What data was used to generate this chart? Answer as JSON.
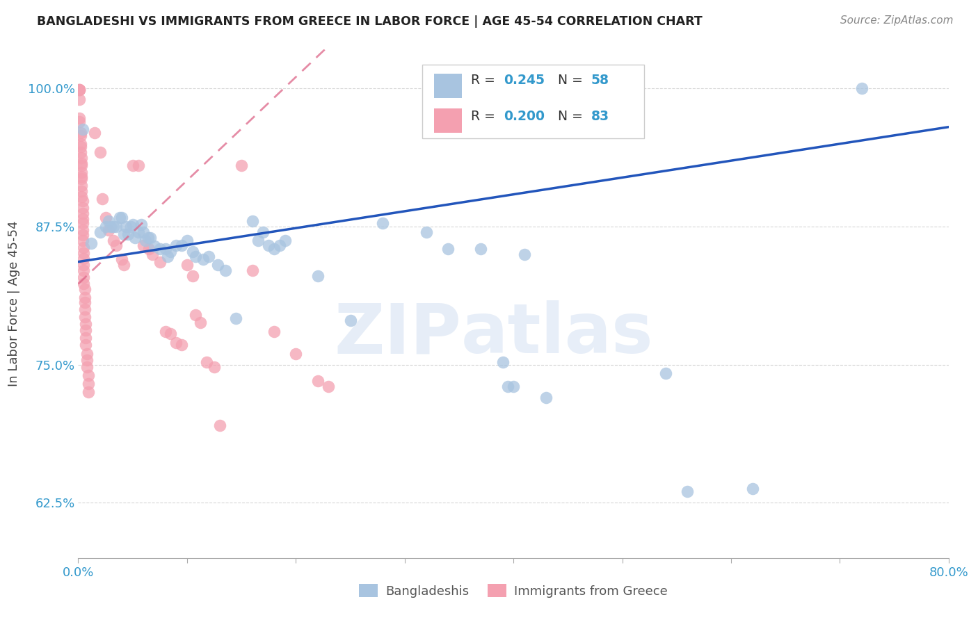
{
  "title": "BANGLADESHI VS IMMIGRANTS FROM GREECE IN LABOR FORCE | AGE 45-54 CORRELATION CHART",
  "source": "Source: ZipAtlas.com",
  "ylabel": "In Labor Force | Age 45-54",
  "watermark_zip": "ZIP",
  "watermark_atlas": "atlas",
  "xlim": [
    0.0,
    0.8
  ],
  "ylim": [
    0.575,
    1.035
  ],
  "yticks": [
    0.625,
    0.75,
    0.875,
    1.0
  ],
  "ytick_labels": [
    "62.5%",
    "75.0%",
    "87.5%",
    "100.0%"
  ],
  "xticks": [
    0.0,
    0.1,
    0.2,
    0.3,
    0.4,
    0.5,
    0.6,
    0.7,
    0.8
  ],
  "xtick_labels": [
    "0.0%",
    "",
    "",
    "",
    "",
    "",
    "",
    "",
    "80.0%"
  ],
  "blue_R": 0.245,
  "blue_N": 58,
  "pink_R": 0.2,
  "pink_N": 83,
  "blue_color": "#a8c4e0",
  "pink_color": "#f4a0b0",
  "blue_line_color": "#2255bb",
  "pink_line_color": "#dd6688",
  "blue_line_x": [
    0.0,
    0.8
  ],
  "blue_line_y": [
    0.843,
    0.965
  ],
  "pink_line_x": [
    0.0,
    0.125
  ],
  "pink_line_y": [
    0.823,
    0.94
  ],
  "blue_scatter": [
    [
      0.004,
      0.963
    ],
    [
      0.012,
      0.86
    ],
    [
      0.02,
      0.87
    ],
    [
      0.025,
      0.875
    ],
    [
      0.028,
      0.88
    ],
    [
      0.03,
      0.875
    ],
    [
      0.032,
      0.875
    ],
    [
      0.035,
      0.875
    ],
    [
      0.038,
      0.883
    ],
    [
      0.04,
      0.883
    ],
    [
      0.042,
      0.868
    ],
    [
      0.044,
      0.875
    ],
    [
      0.046,
      0.868
    ],
    [
      0.048,
      0.875
    ],
    [
      0.05,
      0.877
    ],
    [
      0.052,
      0.865
    ],
    [
      0.055,
      0.87
    ],
    [
      0.058,
      0.877
    ],
    [
      0.06,
      0.87
    ],
    [
      0.062,
      0.862
    ],
    [
      0.064,
      0.865
    ],
    [
      0.066,
      0.865
    ],
    [
      0.07,
      0.857
    ],
    [
      0.075,
      0.855
    ],
    [
      0.08,
      0.855
    ],
    [
      0.082,
      0.848
    ],
    [
      0.085,
      0.852
    ],
    [
      0.09,
      0.858
    ],
    [
      0.095,
      0.858
    ],
    [
      0.1,
      0.862
    ],
    [
      0.105,
      0.852
    ],
    [
      0.108,
      0.848
    ],
    [
      0.115,
      0.845
    ],
    [
      0.12,
      0.848
    ],
    [
      0.128,
      0.84
    ],
    [
      0.135,
      0.835
    ],
    [
      0.145,
      0.792
    ],
    [
      0.16,
      0.88
    ],
    [
      0.165,
      0.862
    ],
    [
      0.17,
      0.87
    ],
    [
      0.175,
      0.858
    ],
    [
      0.18,
      0.855
    ],
    [
      0.185,
      0.858
    ],
    [
      0.19,
      0.862
    ],
    [
      0.22,
      0.83
    ],
    [
      0.25,
      0.79
    ],
    [
      0.28,
      0.878
    ],
    [
      0.32,
      0.87
    ],
    [
      0.34,
      0.855
    ],
    [
      0.37,
      0.855
    ],
    [
      0.39,
      0.752
    ],
    [
      0.395,
      0.73
    ],
    [
      0.4,
      0.73
    ],
    [
      0.41,
      0.85
    ],
    [
      0.43,
      0.72
    ],
    [
      0.54,
      0.742
    ],
    [
      0.56,
      0.635
    ],
    [
      0.62,
      0.638
    ],
    [
      0.72,
      1.0
    ]
  ],
  "pink_scatter": [
    [
      0.001,
      0.999
    ],
    [
      0.001,
      0.999
    ],
    [
      0.001,
      0.999
    ],
    [
      0.001,
      0.99
    ],
    [
      0.001,
      0.973
    ],
    [
      0.001,
      0.97
    ],
    [
      0.002,
      0.96
    ],
    [
      0.002,
      0.957
    ],
    [
      0.002,
      0.95
    ],
    [
      0.002,
      0.947
    ],
    [
      0.002,
      0.942
    ],
    [
      0.003,
      0.937
    ],
    [
      0.003,
      0.932
    ],
    [
      0.003,
      0.93
    ],
    [
      0.003,
      0.924
    ],
    [
      0.003,
      0.92
    ],
    [
      0.003,
      0.918
    ],
    [
      0.003,
      0.912
    ],
    [
      0.003,
      0.907
    ],
    [
      0.003,
      0.902
    ],
    [
      0.004,
      0.898
    ],
    [
      0.004,
      0.892
    ],
    [
      0.004,
      0.887
    ],
    [
      0.004,
      0.882
    ],
    [
      0.004,
      0.878
    ],
    [
      0.004,
      0.872
    ],
    [
      0.004,
      0.867
    ],
    [
      0.004,
      0.862
    ],
    [
      0.005,
      0.856
    ],
    [
      0.005,
      0.851
    ],
    [
      0.005,
      0.846
    ],
    [
      0.005,
      0.84
    ],
    [
      0.005,
      0.835
    ],
    [
      0.005,
      0.829
    ],
    [
      0.005,
      0.823
    ],
    [
      0.006,
      0.818
    ],
    [
      0.006,
      0.811
    ],
    [
      0.006,
      0.806
    ],
    [
      0.006,
      0.8
    ],
    [
      0.006,
      0.793
    ],
    [
      0.007,
      0.787
    ],
    [
      0.007,
      0.781
    ],
    [
      0.007,
      0.774
    ],
    [
      0.007,
      0.768
    ],
    [
      0.008,
      0.76
    ],
    [
      0.008,
      0.754
    ],
    [
      0.008,
      0.748
    ],
    [
      0.009,
      0.74
    ],
    [
      0.009,
      0.733
    ],
    [
      0.009,
      0.725
    ],
    [
      0.015,
      0.96
    ],
    [
      0.02,
      0.942
    ],
    [
      0.022,
      0.9
    ],
    [
      0.025,
      0.883
    ],
    [
      0.028,
      0.872
    ],
    [
      0.032,
      0.862
    ],
    [
      0.035,
      0.858
    ],
    [
      0.04,
      0.845
    ],
    [
      0.042,
      0.84
    ],
    [
      0.05,
      0.93
    ],
    [
      0.055,
      0.93
    ],
    [
      0.06,
      0.858
    ],
    [
      0.065,
      0.855
    ],
    [
      0.068,
      0.85
    ],
    [
      0.075,
      0.843
    ],
    [
      0.08,
      0.78
    ],
    [
      0.085,
      0.778
    ],
    [
      0.09,
      0.77
    ],
    [
      0.095,
      0.768
    ],
    [
      0.1,
      0.84
    ],
    [
      0.105,
      0.83
    ],
    [
      0.108,
      0.795
    ],
    [
      0.112,
      0.788
    ],
    [
      0.118,
      0.752
    ],
    [
      0.125,
      0.748
    ],
    [
      0.13,
      0.695
    ],
    [
      0.15,
      0.93
    ],
    [
      0.16,
      0.835
    ],
    [
      0.18,
      0.78
    ],
    [
      0.2,
      0.76
    ],
    [
      0.22,
      0.735
    ],
    [
      0.23,
      0.73
    ]
  ],
  "background_color": "#ffffff",
  "grid_color": "#cccccc"
}
